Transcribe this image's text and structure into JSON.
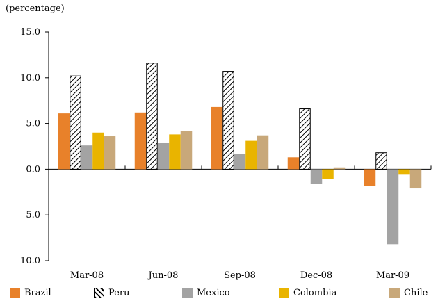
{
  "chart_data": {
    "type": "bar",
    "ylabel": "(percentage)",
    "categories": [
      "Mar-08",
      "Jun-08",
      "Sep-08",
      "Dec-08",
      "Mar-09"
    ],
    "ylim": [
      -10,
      15
    ],
    "yticks": [
      "15.0",
      "10.0",
      "5.0",
      "0.0",
      "-5.0",
      "-10.0"
    ],
    "legend_position": "bottom",
    "series": [
      {
        "name": "Brazil",
        "color": "#E8812A",
        "pattern": "solid",
        "values": [
          6.1,
          6.2,
          6.8,
          1.3,
          -1.8
        ]
      },
      {
        "name": "Peru",
        "color": "#000000",
        "pattern": "hatched",
        "values": [
          10.2,
          11.6,
          10.7,
          6.6,
          1.8
        ]
      },
      {
        "name": "Mexico",
        "color": "#A3A3A3",
        "pattern": "solid",
        "values": [
          2.6,
          2.9,
          1.7,
          -1.6,
          -8.2
        ]
      },
      {
        "name": "Colombia",
        "color": "#E9B400",
        "pattern": "solid",
        "values": [
          4.0,
          3.8,
          3.1,
          -1.1,
          -0.6
        ]
      },
      {
        "name": "Chile",
        "color": "#C8A87A",
        "pattern": "solid",
        "values": [
          3.6,
          4.2,
          3.7,
          0.2,
          -2.1
        ]
      }
    ]
  }
}
